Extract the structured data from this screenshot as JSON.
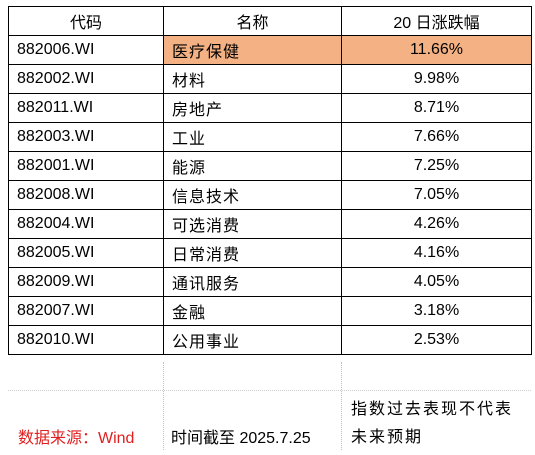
{
  "table": {
    "headers": [
      "代码",
      "名称",
      "20 日涨跌幅"
    ],
    "rows": [
      {
        "code": "882006.WI",
        "name": "医疗保健",
        "change": "11.66%",
        "highlight": true
      },
      {
        "code": "882002.WI",
        "name": "材料",
        "change": "9.98%"
      },
      {
        "code": "882011.WI",
        "name": "房地产",
        "change": "8.71%"
      },
      {
        "code": "882003.WI",
        "name": "工业",
        "change": "7.66%"
      },
      {
        "code": "882001.WI",
        "name": "能源",
        "change": "7.25%"
      },
      {
        "code": "882008.WI",
        "name": "信息技术",
        "change": "7.05%"
      },
      {
        "code": "882004.WI",
        "name": "可选消费",
        "change": "4.26%"
      },
      {
        "code": "882005.WI",
        "name": "日常消费",
        "change": "4.16%"
      },
      {
        "code": "882009.WI",
        "name": "通讯服务",
        "change": "4.05%"
      },
      {
        "code": "882007.WI",
        "name": "金融",
        "change": "3.18%"
      },
      {
        "code": "882010.WI",
        "name": "公用事业",
        "change": "2.53%"
      }
    ]
  },
  "footer": {
    "source": "数据来源：Wind",
    "as_of": "时间截至 2025.7.25",
    "disclaimer": "指数过去表现不代表未来预期"
  },
  "colors": {
    "highlight": "#f4b183",
    "source_text": "#e02020",
    "border": "#000000"
  }
}
